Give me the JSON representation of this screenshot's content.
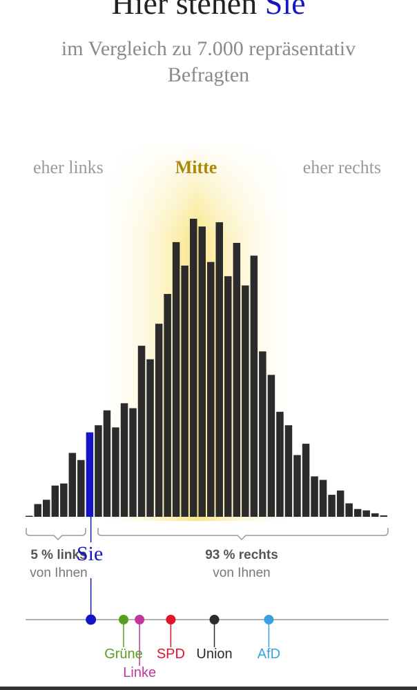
{
  "header": {
    "title_prefix": "Hier stehen ",
    "title_you": "Sie",
    "subtitle": "im Vergleich zu 7.000 repräsentativ Befragten"
  },
  "regions": {
    "left": "eher links",
    "middle": "Mitte",
    "right": "eher rechts"
  },
  "stats": {
    "left_big": "5 % links",
    "left_small": "von Ihnen",
    "right_big": "93 % rechts",
    "right_small": "von Ihnen"
  },
  "you_label": "Sie",
  "colors": {
    "bar": "#2b2b2b",
    "you": "#1414c8",
    "glow": "#f5d000",
    "axis": "#999999"
  },
  "chart_data": {
    "type": "bar",
    "values": [
      1,
      18,
      24,
      44,
      47,
      90,
      80,
      119,
      129,
      150,
      126,
      160,
      153,
      241,
      222,
      272,
      314,
      387,
      354,
      420,
      409,
      359,
      415,
      339,
      386,
      326,
      368,
      233,
      200,
      148,
      129,
      87,
      103,
      57,
      52,
      31,
      37,
      19,
      11,
      9,
      5,
      2
    ],
    "highlight_index": 7,
    "ylim": [
      0,
      420
    ]
  },
  "parties": [
    {
      "name": "Grüne",
      "color": "#56a01e",
      "pos": 0.27,
      "label_row": 0
    },
    {
      "name": "Linke",
      "color": "#c0379e",
      "pos": 0.314,
      "label_row": 1
    },
    {
      "name": "SPD",
      "color": "#e3122d",
      "pos": 0.4,
      "label_row": 0
    },
    {
      "name": "Union",
      "color": "#2b2b2b",
      "pos": 0.52,
      "label_row": 0
    },
    {
      "name": "AfD",
      "color": "#36a2e0",
      "pos": 0.67,
      "label_row": 0
    }
  ],
  "you_pos": 0.18
}
